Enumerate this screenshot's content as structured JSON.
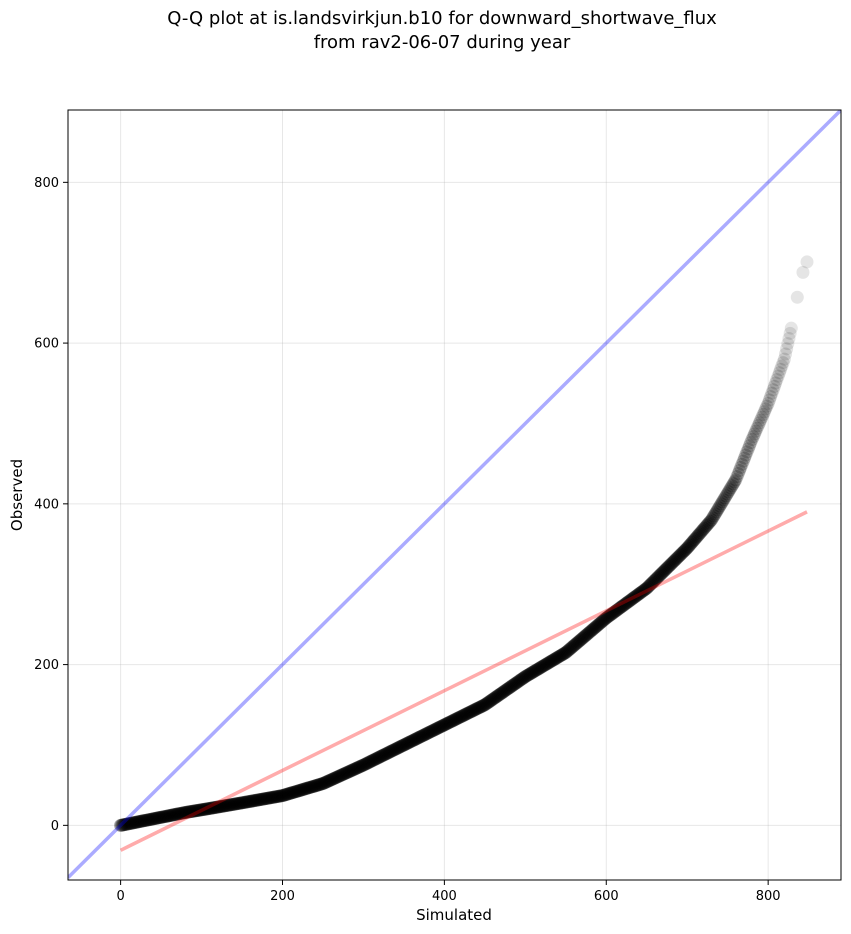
{
  "chart_data": {
    "type": "scatter",
    "title_line1": "Q-Q plot at is.landsvirkjun.b10 for downward_shortwave_flux",
    "title_line2": "from rav2-06-07 during year",
    "xlabel": "Simulated",
    "ylabel": "Observed",
    "xlim": [
      -65,
      890
    ],
    "ylim": [
      -68,
      890
    ],
    "xticks": [
      0,
      200,
      400,
      600,
      800
    ],
    "yticks": [
      0,
      200,
      400,
      600,
      800
    ],
    "grid": true,
    "identity_line": {
      "color": "#0000ff",
      "alpha": 0.33,
      "points": [
        [
          -65,
          -65
        ],
        [
          890,
          890
        ]
      ]
    },
    "fit_line": {
      "color": "#ff0000",
      "alpha": 0.33,
      "points": [
        [
          0,
          -31
        ],
        [
          848,
          390
        ]
      ]
    },
    "quantile_curve": [
      [
        0,
        0
      ],
      [
        20,
        4
      ],
      [
        50,
        10
      ],
      [
        80,
        16
      ],
      [
        110,
        21
      ],
      [
        150,
        28
      ],
      [
        200,
        37
      ],
      [
        250,
        52
      ],
      [
        300,
        75
      ],
      [
        350,
        100
      ],
      [
        400,
        125
      ],
      [
        450,
        150
      ],
      [
        500,
        185
      ],
      [
        550,
        215
      ],
      [
        600,
        258
      ],
      [
        650,
        295
      ],
      [
        700,
        345
      ],
      [
        730,
        380
      ],
      [
        760,
        430
      ],
      [
        780,
        480
      ],
      [
        800,
        525
      ],
      [
        820,
        580
      ],
      [
        830,
        625
      ]
    ],
    "outlier_points": [
      [
        836,
        657
      ],
      [
        843,
        688
      ],
      [
        848,
        701
      ]
    ],
    "marker_color": "#000000"
  }
}
